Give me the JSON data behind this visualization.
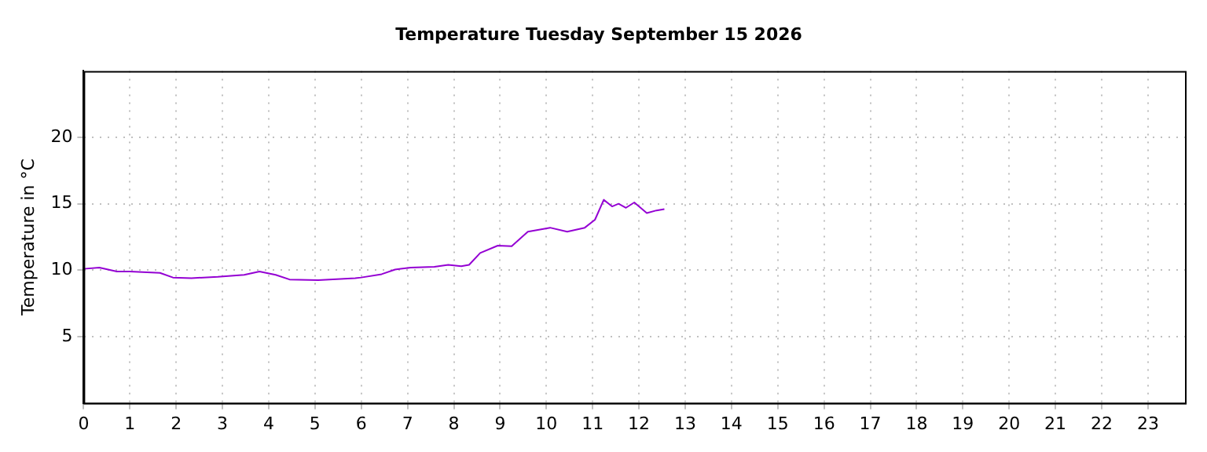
{
  "chart_data": {
    "type": "line",
    "title": "Temperature Tuesday September 15 2026",
    "ylabel": "Temperature in °C",
    "x": [
      0,
      0.34,
      0.72,
      1.0,
      1.65,
      1.93,
      2.33,
      2.9,
      3.47,
      3.8,
      4.15,
      4.45,
      5.07,
      5.87,
      6.0,
      6.44,
      6.73,
      7.07,
      7.58,
      7.88,
      8.16,
      8.33,
      8.57,
      8.95,
      9.25,
      9.6,
      10.08,
      10.45,
      10.83,
      11.05,
      11.24,
      11.42,
      11.56,
      11.72,
      11.9,
      12.17,
      12.38,
      12.55
    ],
    "series": [
      {
        "color": "#9400d3",
        "values": [
          10.1,
          10.2,
          9.9,
          9.9,
          9.8,
          9.45,
          9.4,
          9.5,
          9.65,
          9.9,
          9.65,
          9.3,
          9.25,
          9.4,
          9.45,
          9.7,
          10.05,
          10.2,
          10.25,
          10.4,
          10.3,
          10.4,
          11.3,
          11.85,
          11.8,
          12.9,
          13.2,
          12.9,
          13.2,
          13.8,
          15.3,
          14.8,
          15.0,
          14.7,
          15.1,
          14.3,
          14.5,
          14.6
        ]
      }
    ],
    "xlim": [
      0,
      23.8
    ],
    "xticks": [
      0,
      1,
      2,
      3,
      4,
      5,
      6,
      7,
      8,
      9,
      10,
      11,
      12,
      13,
      14,
      15,
      16,
      17,
      18,
      19,
      20,
      21,
      22,
      23
    ],
    "ylim": [
      0,
      25
    ],
    "yticks": [
      5,
      10,
      15,
      20
    ],
    "grid": true
  }
}
